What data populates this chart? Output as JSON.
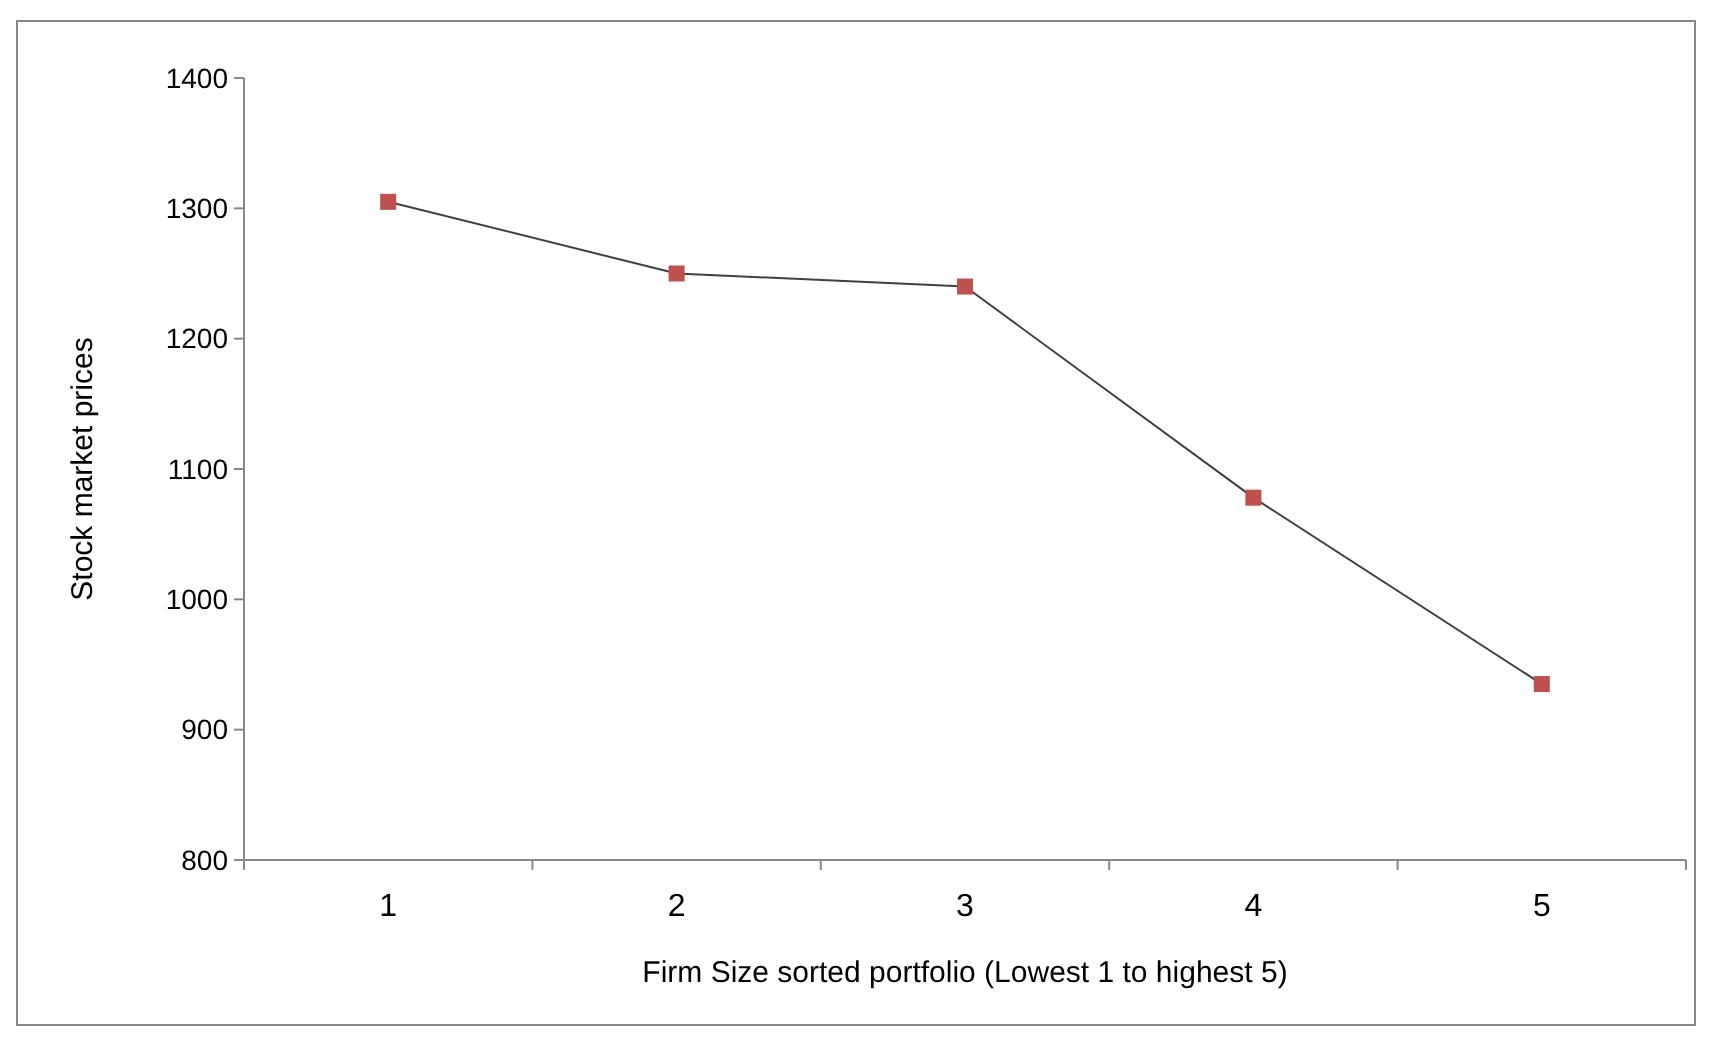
{
  "chart_data": {
    "type": "line",
    "xlabel": "Firm Size sorted portfolio (Lowest 1 to highest 5)",
    "ylabel": "Stock market prices",
    "categories": [
      "1",
      "2",
      "3",
      "4",
      "5"
    ],
    "series": [
      {
        "color": "#c0504d",
        "values": [
          1305,
          1250,
          1240,
          1078,
          935
        ]
      }
    ],
    "ylim": [
      800,
      1400
    ],
    "yticks": [
      800,
      900,
      1000,
      1100,
      1200,
      1300,
      1400
    ],
    "grid": false,
    "marker": "square",
    "line_style": "solid"
  }
}
